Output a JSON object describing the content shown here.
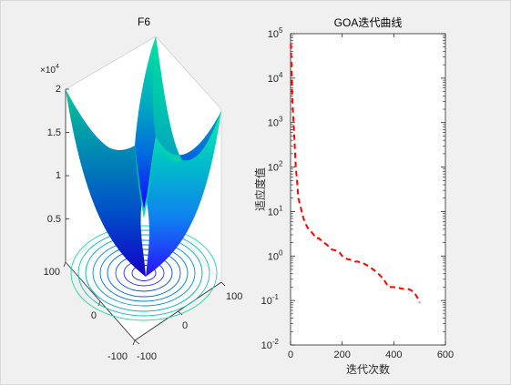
{
  "figure": {
    "background": "#f0f0f0",
    "axes_color": "#262626"
  },
  "left_plot": {
    "title": "F6",
    "z_multiplier_base": "×10",
    "z_multiplier_exp": "4",
    "z_ticks": [
      "2",
      "1.5",
      "1",
      "0.5"
    ],
    "x_ticks": [
      "-100",
      "0",
      "100"
    ],
    "y_ticks": [
      "100",
      "0",
      "-100"
    ],
    "surface_colors": [
      "#1a00ff",
      "#0066e0",
      "#00a8c0",
      "#00e6a0"
    ]
  },
  "chart_data": {
    "type": "line",
    "title": "GOA迭代曲线",
    "xlabel": "迭代次数",
    "ylabel": "适应度值",
    "xlim": [
      0,
      600
    ],
    "ylim": [
      0.01,
      100000
    ],
    "yscale": "log",
    "x_tick_labels": [
      "0",
      "200",
      "400",
      "600"
    ],
    "y_tick_labels": [
      {
        "base": "10",
        "exp": "5"
      },
      {
        "base": "10",
        "exp": "4"
      },
      {
        "base": "10",
        "exp": "3"
      },
      {
        "base": "10",
        "exp": "2"
      },
      {
        "base": "10",
        "exp": "1"
      },
      {
        "base": "10",
        "exp": "0"
      },
      {
        "base": "10",
        "exp": "-1"
      },
      {
        "base": "10",
        "exp": "-2"
      }
    ],
    "grid": false,
    "series": [
      {
        "color": "#ff0000",
        "linestyle": "dashed",
        "x": [
          1,
          3,
          6,
          10,
          15,
          20,
          25,
          30,
          40,
          50,
          60,
          70,
          80,
          90,
          100,
          110,
          120,
          140,
          160,
          180,
          190,
          200,
          220,
          240,
          250,
          260,
          280,
          300,
          320,
          340,
          350,
          360,
          380,
          400,
          420,
          440,
          460,
          480,
          490,
          500
        ],
        "y": [
          60000,
          20000,
          5000,
          1500,
          400,
          100,
          50,
          20,
          12,
          7,
          5,
          4,
          3.5,
          3,
          2.5,
          2.5,
          2.2,
          1.8,
          1.4,
          1.3,
          1.2,
          1.0,
          0.85,
          0.8,
          0.75,
          0.75,
          0.7,
          0.6,
          0.5,
          0.4,
          0.35,
          0.3,
          0.2,
          0.2,
          0.19,
          0.18,
          0.18,
          0.15,
          0.12,
          0.09
        ]
      }
    ]
  }
}
